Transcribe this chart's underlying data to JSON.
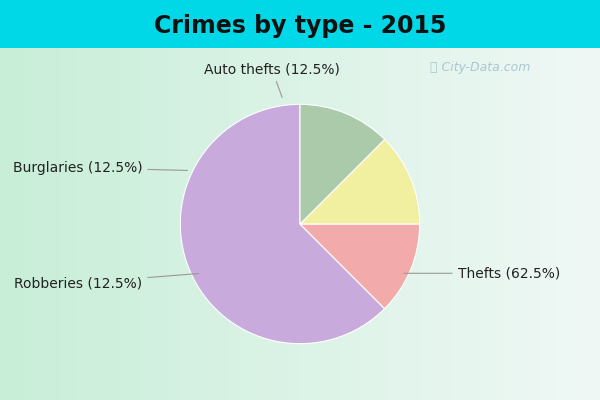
{
  "title": "Crimes by type - 2015",
  "title_fontsize": 17,
  "title_fontweight": "bold",
  "slices": [
    {
      "label": "Thefts (62.5%)",
      "value": 62.5,
      "color": "#C8AADC"
    },
    {
      "label": "Auto thefts (12.5%)",
      "value": 12.5,
      "color": "#F2AAAA"
    },
    {
      "label": "Burglaries (12.5%)",
      "value": 12.5,
      "color": "#F0F0A0"
    },
    {
      "label": "Robberies (12.5%)",
      "value": 12.5,
      "color": "#AACAAA"
    }
  ],
  "background_cyan": "#00D8E8",
  "background_inner": "#C8EED8",
  "label_fontsize": 10,
  "label_color": "#222222",
  "startangle": 90,
  "watermark": "ⓘ City-Data.com"
}
